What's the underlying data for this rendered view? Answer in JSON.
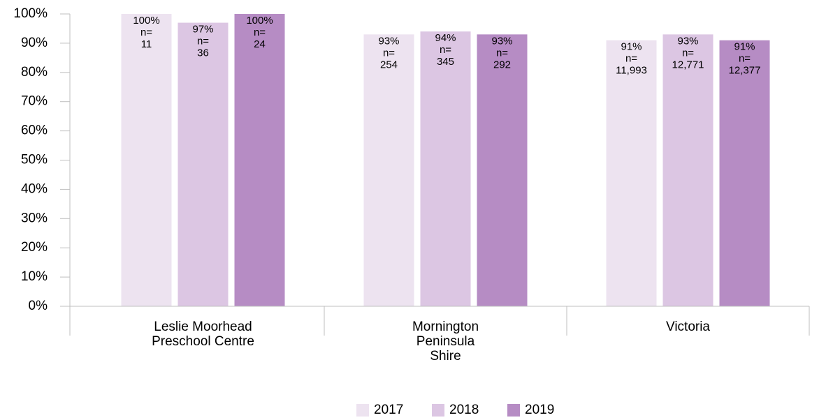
{
  "chart_data": {
    "type": "bar",
    "categories": [
      [
        "Leslie Moorhead",
        "Preschool Centre"
      ],
      [
        "Mornington",
        "Peninsula",
        "Shire"
      ],
      [
        "Victoria"
      ]
    ],
    "count_prefix": "n=",
    "series": [
      {
        "name": "2017",
        "color": "#ede3f0",
        "values": [
          100,
          93,
          91
        ],
        "value_labels": [
          "100%",
          "93%",
          "91%"
        ],
        "count_labels": [
          "11",
          "254",
          "11,993"
        ]
      },
      {
        "name": "2018",
        "color": "#dcc6e3",
        "values": [
          97,
          94,
          93
        ],
        "value_labels": [
          "97%",
          "94%",
          "93%"
        ],
        "count_labels": [
          "36",
          "345",
          "12,771"
        ]
      },
      {
        "name": "2019",
        "color": "#b68cc4",
        "values": [
          100,
          93,
          91
        ],
        "value_labels": [
          "100%",
          "93%",
          "91%"
        ],
        "count_labels": [
          "24",
          "292",
          "12,377"
        ]
      }
    ],
    "ylim": [
      0,
      100
    ],
    "yticks": [
      {
        "value": 0,
        "label": "0%"
      },
      {
        "value": 10,
        "label": "10%"
      },
      {
        "value": 20,
        "label": "20%"
      },
      {
        "value": 30,
        "label": "30%"
      },
      {
        "value": 40,
        "label": "40%"
      },
      {
        "value": 50,
        "label": "50%"
      },
      {
        "value": 60,
        "label": "60%"
      },
      {
        "value": 70,
        "label": "70%"
      },
      {
        "value": 80,
        "label": "80%"
      },
      {
        "value": 90,
        "label": "90%"
      },
      {
        "value": 100,
        "label": "100%"
      }
    ],
    "legend": "bottom"
  }
}
